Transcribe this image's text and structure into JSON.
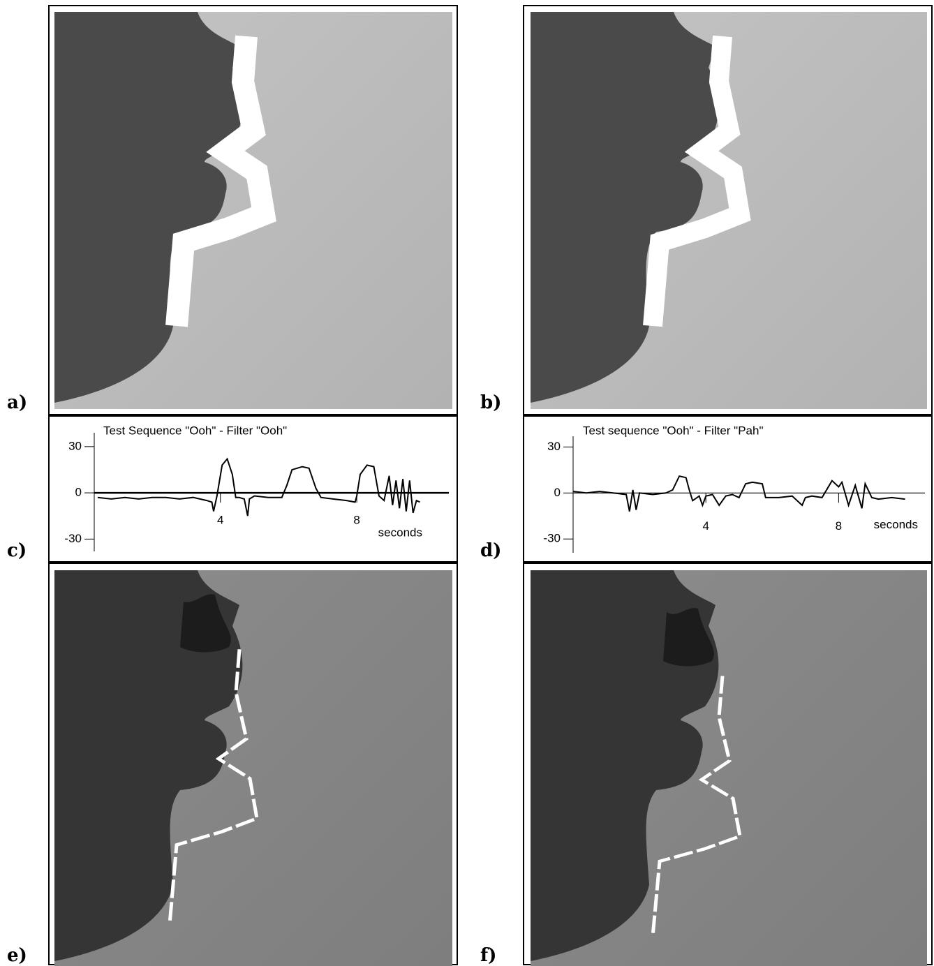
{
  "panels": [
    {
      "label": "a)"
    },
    {
      "label": "b)"
    },
    {
      "label": "c)"
    },
    {
      "label": "d)"
    },
    {
      "label": "e)"
    },
    {
      "label": "f)"
    }
  ],
  "chart_data": [
    {
      "type": "line",
      "title": "Test Sequence \"Ooh\" - Filter \"Ooh\"",
      "x_label": "seconds",
      "x": [
        0.4,
        0.8,
        1.2,
        1.6,
        2.0,
        2.4,
        2.8,
        3.2,
        3.6,
        3.75,
        3.8,
        3.9,
        4.05,
        4.2,
        4.35,
        4.45,
        4.55,
        4.7,
        4.8,
        4.85,
        5.0,
        5.4,
        5.8,
        5.95,
        6.1,
        6.4,
        6.6,
        6.8,
        6.95,
        7.3,
        7.7,
        7.95,
        8.0,
        8.1,
        8.3,
        8.5,
        8.65,
        8.8,
        8.95,
        9.05,
        9.15,
        9.25,
        9.35,
        9.45,
        9.55,
        9.65,
        9.75,
        9.85
      ],
      "values": [
        -3,
        -4,
        -3,
        -4,
        -3,
        -3,
        -4,
        -3,
        -5,
        -6,
        -12,
        -2,
        18,
        22,
        12,
        -3,
        -3,
        -4,
        -15,
        -4,
        -2,
        -3,
        -3,
        5,
        15,
        17,
        16,
        3,
        -3,
        -4,
        -5,
        -6,
        -2,
        12,
        18,
        17,
        -2,
        -5,
        11,
        -8,
        8,
        -10,
        9,
        -12,
        8,
        -13,
        -5,
        -6
      ],
      "color": "#000000",
      "xlim": [
        0.3,
        10.7
      ],
      "ylim": [
        -38,
        39
      ],
      "xticks": [
        4,
        8
      ],
      "yticks": [
        -30,
        0,
        30
      ]
    },
    {
      "type": "line",
      "title": "Test sequence \"Ooh\"  -  Filter \"Pah\"",
      "x_label": "seconds",
      "x": [
        0,
        0.4,
        0.8,
        1.2,
        1.6,
        1.7,
        1.8,
        1.9,
        2.0,
        2.4,
        2.8,
        3.0,
        3.2,
        3.4,
        3.5,
        3.6,
        3.8,
        3.9,
        4.0,
        4.2,
        4.4,
        4.6,
        4.8,
        5.0,
        5.2,
        5.4,
        5.7,
        5.8,
        6.2,
        6.6,
        6.9,
        7.0,
        7.2,
        7.5,
        7.8,
        8.0,
        8.1,
        8.3,
        8.5,
        8.7,
        8.8,
        9.0,
        9.2,
        9.6,
        10.0
      ],
      "values": [
        1,
        0,
        1,
        0,
        -1,
        -12,
        2,
        -11,
        0,
        -1,
        0,
        2,
        11,
        10,
        2,
        -5,
        -2,
        -8,
        -2,
        -1,
        -8,
        -2,
        -1,
        -3,
        6,
        7,
        6,
        -3,
        -3,
        -2,
        -8,
        -3,
        -2,
        -3,
        8,
        4,
        7,
        -8,
        5,
        -10,
        6,
        -3,
        -4,
        -3,
        -4
      ],
      "color": "#000000",
      "xlim": [
        0,
        10.6
      ],
      "ylim": [
        -39,
        37
      ],
      "xticks": [
        4,
        8
      ],
      "yticks": [
        -30,
        0,
        30
      ]
    }
  ]
}
